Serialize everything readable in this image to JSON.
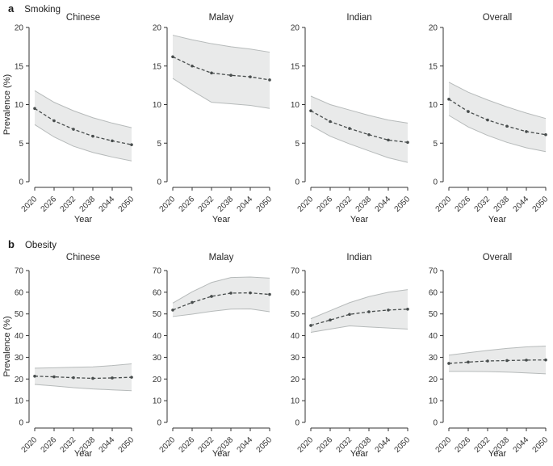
{
  "colors": {
    "band_fill": "#e9eaea",
    "band_edge": "#b6baba",
    "mean_line": "#474c4c",
    "axis": "#333333",
    "tick_text": "#333333",
    "title_text": "#262626"
  },
  "chart_data": [
    {
      "type": "area",
      "panel_label": "a",
      "title": "Smoking",
      "xlabel": "Year",
      "ylabel": "Prevalence (%)",
      "x": [
        2020,
        2026,
        2032,
        2038,
        2044,
        2050
      ],
      "xlim": [
        2020,
        2050
      ],
      "ylim": [
        0,
        20
      ],
      "yticks": [
        0,
        5,
        10,
        15,
        20
      ],
      "grid": false,
      "legend": "none",
      "line_style": "dashed with point markers, shaded uncertainty band",
      "panels": [
        {
          "name": "Chinese",
          "mean": [
            9.5,
            7.9,
            6.8,
            5.9,
            5.3,
            4.8
          ],
          "lower": [
            7.4,
            5.8,
            4.6,
            3.8,
            3.2,
            2.7
          ],
          "upper": [
            11.8,
            10.3,
            9.2,
            8.3,
            7.6,
            7.0
          ]
        },
        {
          "name": "Malay",
          "mean": [
            16.2,
            15.0,
            14.1,
            13.8,
            13.6,
            13.2
          ],
          "lower": [
            13.4,
            11.8,
            10.3,
            10.1,
            9.9,
            9.5
          ],
          "upper": [
            19.0,
            18.4,
            17.9,
            17.5,
            17.2,
            16.8
          ]
        },
        {
          "name": "Indian",
          "mean": [
            9.2,
            7.8,
            6.9,
            6.1,
            5.4,
            5.1
          ],
          "lower": [
            7.3,
            5.9,
            4.9,
            4.0,
            3.1,
            2.5
          ],
          "upper": [
            11.1,
            10.0,
            9.3,
            8.6,
            8.0,
            7.6
          ]
        },
        {
          "name": "Overall",
          "mean": [
            10.7,
            9.1,
            8.0,
            7.2,
            6.5,
            6.1
          ],
          "lower": [
            8.6,
            7.1,
            6.0,
            5.1,
            4.4,
            3.9
          ],
          "upper": [
            12.9,
            11.6,
            10.6,
            9.7,
            8.9,
            8.2
          ]
        }
      ]
    },
    {
      "type": "area",
      "panel_label": "b",
      "title": "Obesity",
      "xlabel": "Year",
      "ylabel": "Prevalence (%)",
      "x": [
        2020,
        2026,
        2032,
        2038,
        2044,
        2050
      ],
      "xlim": [
        2020,
        2050
      ],
      "ylim": [
        0,
        70
      ],
      "yticks": [
        0,
        10,
        20,
        30,
        40,
        50,
        60,
        70
      ],
      "grid": false,
      "legend": "none",
      "line_style": "dashed with point markers, shaded uncertainty band",
      "panels": [
        {
          "name": "Chinese",
          "mean": [
            21.3,
            21.0,
            20.6,
            20.3,
            20.5,
            20.8
          ],
          "lower": [
            17.5,
            16.8,
            16.0,
            15.4,
            15.0,
            14.6
          ],
          "upper": [
            25.0,
            25.2,
            25.4,
            25.6,
            26.2,
            27.0
          ]
        },
        {
          "name": "Malay",
          "mean": [
            51.8,
            55.3,
            58.1,
            59.6,
            59.7,
            59.0
          ],
          "lower": [
            48.8,
            49.9,
            51.2,
            52.2,
            52.3,
            51.0
          ],
          "upper": [
            55.0,
            60.2,
            64.5,
            66.8,
            67.0,
            66.5
          ]
        },
        {
          "name": "Indian",
          "mean": [
            44.7,
            47.2,
            49.8,
            51.0,
            51.8,
            52.2
          ],
          "lower": [
            41.5,
            43.0,
            44.5,
            44.0,
            43.5,
            43.0
          ],
          "upper": [
            47.8,
            51.5,
            55.2,
            58.0,
            60.0,
            61.2
          ]
        },
        {
          "name": "Overall",
          "mean": [
            27.2,
            27.8,
            28.3,
            28.5,
            28.7,
            28.8
          ],
          "lower": [
            23.5,
            23.5,
            23.4,
            23.2,
            22.8,
            22.4
          ],
          "upper": [
            31.0,
            32.1,
            33.2,
            34.1,
            34.8,
            35.2
          ]
        }
      ]
    }
  ]
}
